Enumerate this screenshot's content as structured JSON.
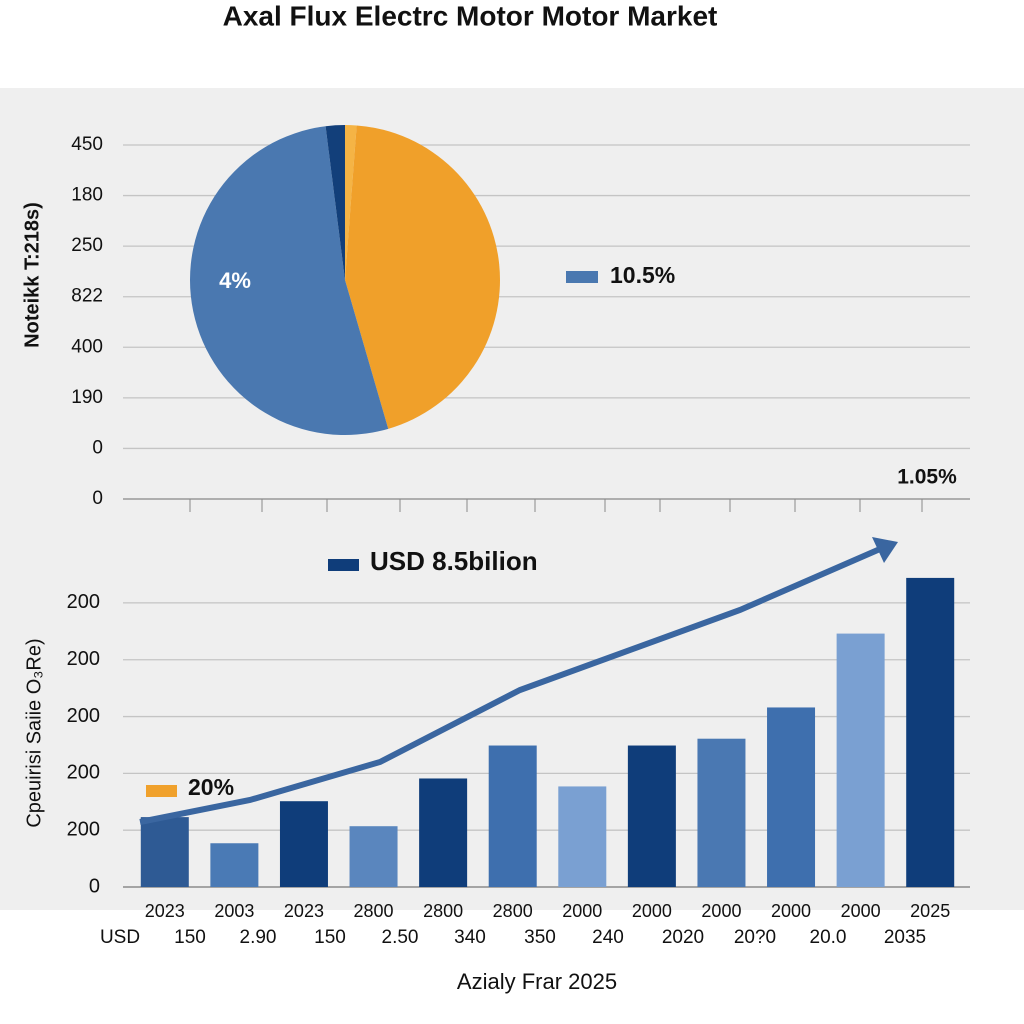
{
  "title": "Axal Flux Electrc Motor Motor Market",
  "chart_data": [
    {
      "type": "pie",
      "y_axis_title": "Noteikk T:218s)",
      "y_axis_labels": [
        "450",
        "180",
        "250",
        "822",
        "400",
        "190",
        "0",
        "0"
      ],
      "values": [
        1.2,
        44.3,
        52.5,
        2.0
      ],
      "colors": [
        "#f5b445",
        "#f0a02a",
        "#4a78b0",
        "#123f7a"
      ],
      "slice_label": "4%",
      "legend": [
        {
          "label": "10.5%",
          "color": "#4a78b0"
        }
      ],
      "corner_label": "1.05%"
    },
    {
      "type": "bar",
      "y_axis_title": "Cpeuirisi Saiie O₃Re)",
      "x_axis_title": "Azialy Frar 2025",
      "categories": [
        "2023",
        "2003",
        "2023",
        "2800",
        "2800",
        "2800",
        "2000",
        "2000",
        "2000",
        "2000",
        "2000",
        "2025"
      ],
      "category_row2": [
        "USD",
        "150",
        "2.90",
        "150",
        "2.50",
        "340",
        "350",
        "240",
        "2020",
        "20?0",
        "20.0",
        "2035"
      ],
      "values": [
        1.23,
        0.77,
        1.51,
        1.07,
        1.91,
        2.49,
        1.77,
        2.49,
        2.61,
        3.16,
        4.46,
        5.44
      ],
      "colors": [
        "#2e5a94",
        "#4a7ab5",
        "#0f3d7a",
        "#5a86be",
        "#0f3d7a",
        "#3e6fae",
        "#7aa0d2",
        "#0f3d7a",
        "#4a78b2",
        "#3e6fae",
        "#7aa0d2",
        "#0f3d7a"
      ],
      "ylim": [
        0,
        5.5
      ],
      "yticks": [
        0,
        {
          "value": 1,
          "label": "200"
        },
        {
          "value": 2,
          "label": "200"
        },
        {
          "value": 3,
          "label": "200"
        },
        {
          "value": 4,
          "label": "200"
        },
        {
          "value": 5,
          "label": "200"
        }
      ],
      "grid": true,
      "legend": [
        {
          "label": "USD 8.5bilion",
          "color": "#0f3d7a"
        },
        {
          "label": "20%",
          "color": "#f0a12c"
        }
      ]
    }
  ]
}
